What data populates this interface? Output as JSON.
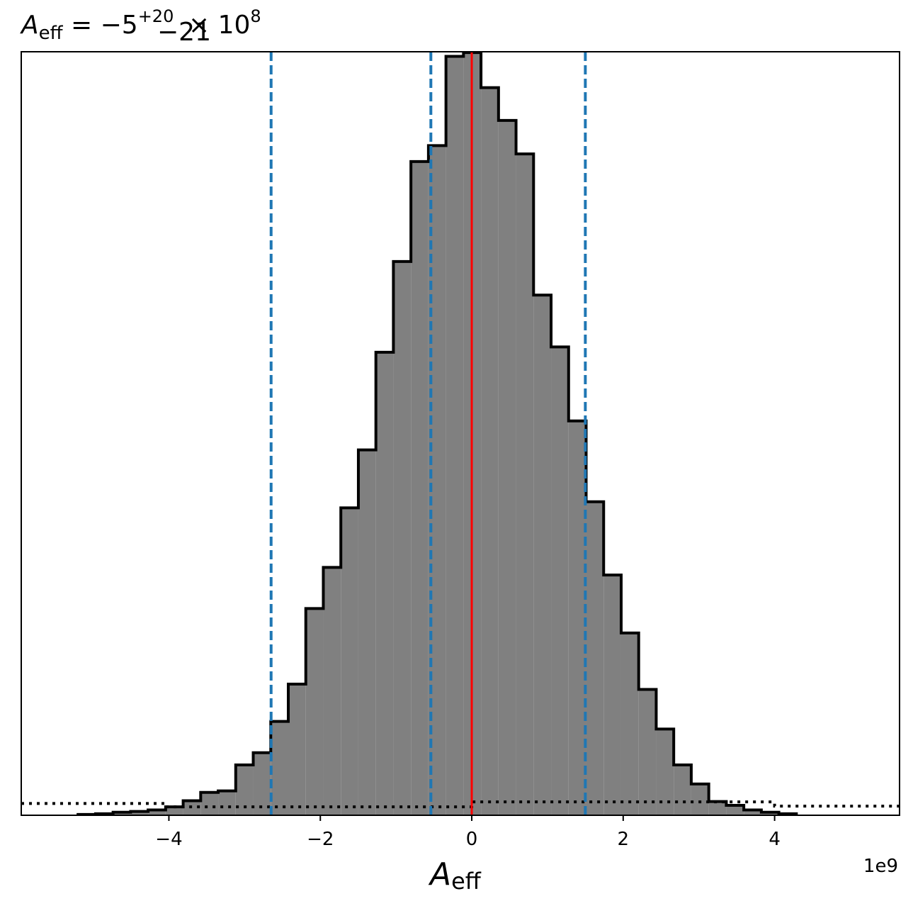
{
  "chart_data": {
    "type": "bar",
    "title": {
      "symbol": "A",
      "subscript": "eff",
      "equals": " = −5",
      "sup_upper": "+20",
      "sup_lower": "−21",
      "multiplier": " × 10",
      "exponent": "8"
    },
    "xlabel": {
      "symbol": "A",
      "subscript": "eff"
    },
    "ylabel": "",
    "x_offset_text": "1e9",
    "xlim": [
      -5.95,
      5.65
    ],
    "ylim": [
      0,
      1.0
    ],
    "x_scale": 1000000000,
    "xticks": [
      -4,
      -2,
      0,
      2,
      4
    ],
    "xtick_labels": [
      "−4",
      "−2",
      "0",
      "2",
      "4"
    ],
    "yticks_visible": false,
    "grid": false,
    "hist": {
      "bin_start": -5.2,
      "bin_width": 0.2314,
      "fill_color": "#808080",
      "edge_color": "#000000",
      "counts": [
        0.001,
        0.002,
        0.004,
        0.005,
        0.007,
        0.011,
        0.019,
        0.03,
        0.032,
        0.066,
        0.082,
        0.123,
        0.172,
        0.271,
        0.325,
        0.403,
        0.479,
        0.607,
        0.726,
        0.857,
        0.878,
        0.995,
        1.0,
        0.954,
        0.911,
        0.867,
        0.682,
        0.614,
        0.517,
        0.411,
        0.315,
        0.239,
        0.165,
        0.113,
        0.066,
        0.041,
        0.018,
        0.013,
        0.007,
        0.004,
        0.002
      ]
    },
    "prior_line": {
      "style": "dotted",
      "color": "#000000",
      "segments": [
        {
          "x": [
            -5.95,
            -4.05
          ],
          "y": 0.0155
        },
        {
          "x": [
            -4.05,
            0.0
          ],
          "y": 0.011
        },
        {
          "x": [
            0.0,
            4.0
          ],
          "y": 0.0175
        },
        {
          "x": [
            4.0,
            5.65
          ],
          "y": 0.012
        }
      ]
    },
    "vlines": [
      {
        "x": -2.65,
        "color": "#1f77b4",
        "style": "dashed",
        "role": "lower quantile"
      },
      {
        "x": -0.54,
        "color": "#1f77b4",
        "style": "dashed",
        "role": "median"
      },
      {
        "x": 1.5,
        "color": "#1f77b4",
        "style": "dashed",
        "role": "upper quantile"
      },
      {
        "x": 0.0,
        "color": "#ff0000",
        "style": "solid",
        "role": "truth"
      }
    ]
  }
}
